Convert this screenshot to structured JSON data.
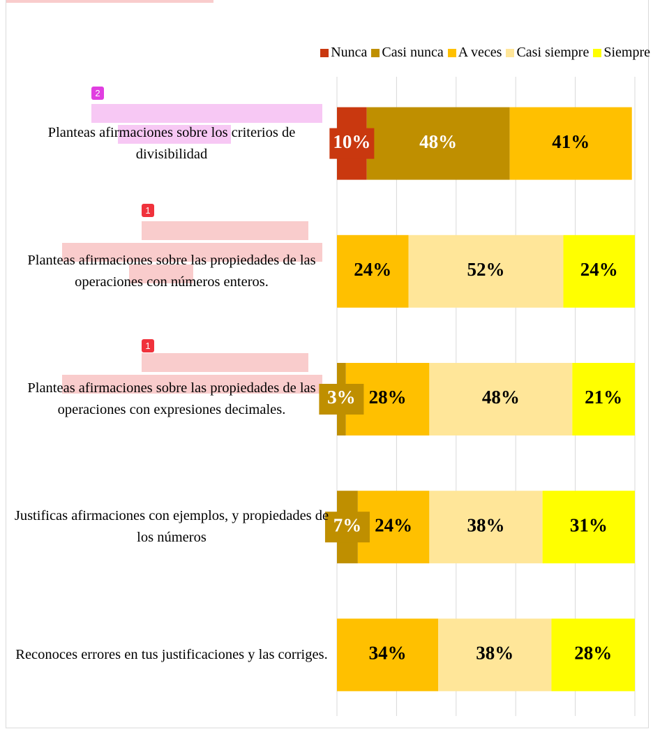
{
  "chart_data": {
    "type": "bar",
    "orientation": "horizontal",
    "stacked": true,
    "categories": [
      "Planteas afirmaciones sobre los criterios de divisibilidad",
      "Planteas afirmaciones sobre las propiedades de las operaciones con números enteros.",
      "Planteas afirmaciones sobre las propiedades de las operaciones con expresiones decimales.",
      "Justificas afirmaciones con ejemplos, y propiedades de los números",
      "Reconoces errores en tus justificaciones y las corriges."
    ],
    "series": [
      {
        "name": "Nunca",
        "color": "#c9380f",
        "label_color": "#ffffff",
        "values": [
          10,
          null,
          null,
          null,
          null
        ],
        "value_labels": [
          "10%",
          null,
          null,
          null,
          null
        ]
      },
      {
        "name": "Casi nunca",
        "color": "#bf8f00",
        "label_color": "#ffffff",
        "values": [
          48,
          null,
          3,
          7,
          null
        ],
        "value_labels": [
          "48%",
          null,
          "3%",
          "7%",
          null
        ]
      },
      {
        "name": "A veces",
        "color": "#ffc000",
        "label_color": "#000000",
        "values": [
          41,
          24,
          28,
          24,
          34
        ],
        "value_labels": [
          "41%",
          "24%",
          "28%",
          "24%",
          "34%"
        ]
      },
      {
        "name": "Casi siempre",
        "color": "#ffe699",
        "label_color": "#000000",
        "values": [
          null,
          52,
          48,
          38,
          38
        ],
        "value_labels": [
          null,
          "52%",
          "48%",
          "38%",
          "38%"
        ]
      },
      {
        "name": "Siempre",
        "color": "#ffff00",
        "label_color": "#000000",
        "values": [
          null,
          24,
          21,
          31,
          28
        ],
        "value_labels": [
          null,
          "24%",
          "21%",
          "31%",
          "28%"
        ]
      }
    ],
    "xlim": [
      0,
      100
    ],
    "xticks": [
      0,
      20,
      40,
      60,
      80,
      100
    ],
    "grid": true,
    "legend": "top-right"
  },
  "annotations": {
    "badges": [
      "2",
      "1",
      "1"
    ]
  }
}
